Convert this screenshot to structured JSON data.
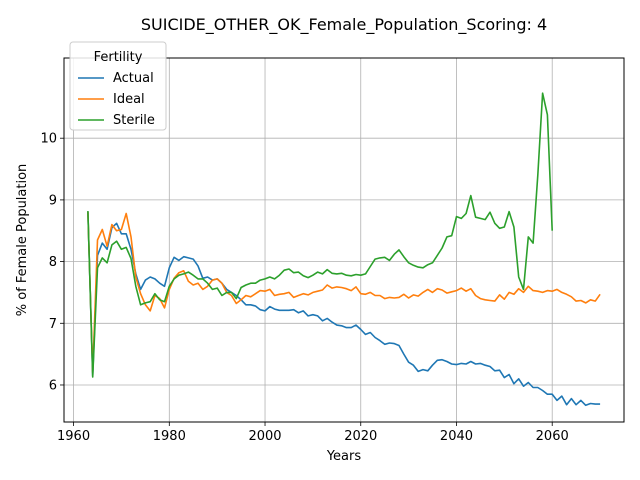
{
  "chart_data": {
    "type": "line",
    "title": "SUICIDE_OTHER_OK_Female_Population_Scoring: 4",
    "xlabel": "Years",
    "ylabel": "% of Female Population",
    "xlim": [
      1958,
      2075
    ],
    "ylim": [
      5.4,
      11.3
    ],
    "xticks": [
      1960,
      1980,
      2000,
      2020,
      2040,
      2060
    ],
    "yticks": [
      6,
      7,
      8,
      9,
      10
    ],
    "grid": true,
    "legend": {
      "title": "Fertility",
      "placement": "top-left"
    },
    "series": [
      {
        "name": "Actual",
        "color": "#1f77b4",
        "x": [
          1963,
          1964,
          1965,
          1966,
          1967,
          1968,
          1969,
          1970,
          1971,
          1972,
          1973,
          1974,
          1975,
          1976,
          1977,
          1978,
          1979,
          1980,
          1981,
          1982,
          1983,
          1984,
          1985,
          1986,
          1987,
          1988,
          1989,
          1990,
          1991,
          1992,
          1993,
          1994,
          1995,
          1996,
          1997,
          1998,
          1999,
          2000,
          2001,
          2002,
          2003,
          2004,
          2005,
          2006,
          2007,
          2008,
          2009,
          2010,
          2011,
          2012,
          2013,
          2014,
          2015,
          2016,
          2017,
          2018,
          2019,
          2020,
          2021,
          2022,
          2023,
          2024,
          2025,
          2026,
          2027,
          2028,
          2029,
          2030,
          2031,
          2032,
          2033,
          2034,
          2035,
          2036,
          2037,
          2038,
          2039,
          2040,
          2041,
          2042,
          2043,
          2044,
          2045,
          2046,
          2047,
          2048,
          2049,
          2050,
          2051,
          2052,
          2053,
          2054,
          2055,
          2056,
          2057,
          2058,
          2059,
          2060,
          2061,
          2062,
          2063,
          2064,
          2065,
          2066,
          2067,
          2068,
          2069,
          2070
        ],
        "y": [
          8.8,
          6.15,
          8.1,
          8.3,
          8.2,
          8.55,
          8.62,
          8.45,
          8.45,
          8.2,
          7.8,
          7.55,
          7.7,
          7.75,
          7.72,
          7.65,
          7.6,
          7.9,
          8.07,
          8.02,
          8.08,
          8.06,
          8.04,
          7.93,
          7.73,
          7.75,
          7.7,
          7.72,
          7.65,
          7.55,
          7.5,
          7.45,
          7.38,
          7.3,
          7.3,
          7.28,
          7.22,
          7.2,
          7.27,
          7.23,
          7.21,
          7.21,
          7.21,
          7.22,
          7.17,
          7.2,
          7.12,
          7.14,
          7.12,
          7.04,
          7.08,
          7.02,
          6.97,
          6.96,
          6.93,
          6.93,
          6.97,
          6.9,
          6.82,
          6.85,
          6.77,
          6.72,
          6.66,
          6.68,
          6.67,
          6.64,
          6.5,
          6.37,
          6.32,
          6.22,
          6.25,
          6.23,
          6.32,
          6.4,
          6.41,
          6.38,
          6.34,
          6.33,
          6.35,
          6.34,
          6.38,
          6.34,
          6.35,
          6.32,
          6.3,
          6.23,
          6.24,
          6.12,
          6.17,
          6.02,
          6.1,
          5.98,
          6.04,
          5.96,
          5.96,
          5.91,
          5.85,
          5.85,
          5.75,
          5.82,
          5.68,
          5.78,
          5.68,
          5.75,
          5.67,
          5.7,
          5.69,
          5.69
        ]
      },
      {
        "name": "Ideal",
        "color": "#ff7f0e",
        "x": [
          1963,
          1964,
          1965,
          1966,
          1967,
          1968,
          1969,
          1970,
          1971,
          1972,
          1973,
          1974,
          1975,
          1976,
          1977,
          1978,
          1979,
          1980,
          1981,
          1982,
          1983,
          1984,
          1985,
          1986,
          1987,
          1988,
          1989,
          1990,
          1991,
          1992,
          1993,
          1994,
          1995,
          1996,
          1997,
          1998,
          1999,
          2000,
          2001,
          2002,
          2003,
          2004,
          2005,
          2006,
          2007,
          2008,
          2009,
          2010,
          2011,
          2012,
          2013,
          2014,
          2015,
          2016,
          2017,
          2018,
          2019,
          2020,
          2021,
          2022,
          2023,
          2024,
          2025,
          2026,
          2027,
          2028,
          2029,
          2030,
          2031,
          2032,
          2033,
          2034,
          2035,
          2036,
          2037,
          2038,
          2039,
          2040,
          2041,
          2042,
          2043,
          2044,
          2045,
          2046,
          2047,
          2048,
          2049,
          2050,
          2051,
          2052,
          2053,
          2054,
          2055,
          2056,
          2057,
          2058,
          2059,
          2060,
          2061,
          2062,
          2063,
          2064,
          2065,
          2066,
          2067,
          2068,
          2069,
          2070
        ],
        "y": [
          8.8,
          6.2,
          8.35,
          8.52,
          8.25,
          8.6,
          8.5,
          8.52,
          8.78,
          8.4,
          7.75,
          7.48,
          7.3,
          7.2,
          7.45,
          7.4,
          7.25,
          7.55,
          7.73,
          7.82,
          7.85,
          7.68,
          7.62,
          7.65,
          7.55,
          7.6,
          7.7,
          7.72,
          7.65,
          7.5,
          7.45,
          7.32,
          7.38,
          7.45,
          7.43,
          7.48,
          7.53,
          7.52,
          7.55,
          7.45,
          7.47,
          7.48,
          7.5,
          7.42,
          7.45,
          7.48,
          7.46,
          7.5,
          7.52,
          7.54,
          7.62,
          7.57,
          7.59,
          7.58,
          7.56,
          7.53,
          7.59,
          7.48,
          7.47,
          7.5,
          7.45,
          7.45,
          7.4,
          7.42,
          7.41,
          7.42,
          7.47,
          7.41,
          7.46,
          7.44,
          7.5,
          7.55,
          7.5,
          7.56,
          7.54,
          7.49,
          7.51,
          7.53,
          7.57,
          7.52,
          7.56,
          7.45,
          7.4,
          7.38,
          7.37,
          7.36,
          7.46,
          7.39,
          7.5,
          7.47,
          7.56,
          7.5,
          7.6,
          7.53,
          7.52,
          7.5,
          7.53,
          7.52,
          7.55,
          7.5,
          7.47,
          7.43,
          7.36,
          7.37,
          7.33,
          7.38,
          7.36,
          7.47
        ]
      },
      {
        "name": "Sterile",
        "color": "#2ca02c",
        "x": [
          1963,
          1964,
          1965,
          1966,
          1967,
          1968,
          1969,
          1970,
          1971,
          1972,
          1973,
          1974,
          1975,
          1976,
          1977,
          1978,
          1979,
          1980,
          1981,
          1982,
          1983,
          1984,
          1985,
          1986,
          1987,
          1988,
          1989,
          1990,
          1991,
          1992,
          1993,
          1994,
          1995,
          1996,
          1997,
          1998,
          1999,
          2000,
          2001,
          2002,
          2003,
          2004,
          2005,
          2006,
          2007,
          2008,
          2009,
          2010,
          2011,
          2012,
          2013,
          2014,
          2015,
          2016,
          2017,
          2018,
          2019,
          2020,
          2021,
          2022,
          2023,
          2024,
          2025,
          2026,
          2027,
          2028,
          2029,
          2030,
          2031,
          2032,
          2033,
          2034,
          2035,
          2036,
          2037,
          2038,
          2039,
          2040,
          2041,
          2042,
          2043,
          2044,
          2045,
          2046,
          2047,
          2048,
          2049,
          2050,
          2051,
          2052,
          2053,
          2054,
          2055,
          2056,
          2057,
          2058,
          2059,
          2060
        ],
        "y": [
          8.82,
          6.13,
          7.9,
          8.06,
          7.98,
          8.27,
          8.33,
          8.2,
          8.23,
          8.05,
          7.6,
          7.3,
          7.33,
          7.35,
          7.48,
          7.38,
          7.35,
          7.6,
          7.72,
          7.78,
          7.8,
          7.83,
          7.78,
          7.72,
          7.72,
          7.65,
          7.55,
          7.57,
          7.45,
          7.5,
          7.5,
          7.4,
          7.58,
          7.62,
          7.65,
          7.65,
          7.7,
          7.72,
          7.75,
          7.72,
          7.78,
          7.86,
          7.88,
          7.82,
          7.83,
          7.77,
          7.74,
          7.78,
          7.83,
          7.8,
          7.87,
          7.81,
          7.8,
          7.81,
          7.78,
          7.77,
          7.79,
          7.78,
          7.8,
          7.92,
          8.04,
          8.06,
          8.07,
          8.02,
          8.12,
          8.19,
          8.08,
          7.98,
          7.94,
          7.91,
          7.9,
          7.95,
          7.98,
          8.1,
          8.22,
          8.4,
          8.42,
          8.73,
          8.7,
          8.78,
          9.07,
          8.72,
          8.7,
          8.68,
          8.8,
          8.62,
          8.54,
          8.56,
          8.81,
          8.56,
          7.75,
          7.55,
          8.4,
          8.3,
          9.4,
          10.73,
          10.38,
          8.5
        ]
      }
    ]
  }
}
